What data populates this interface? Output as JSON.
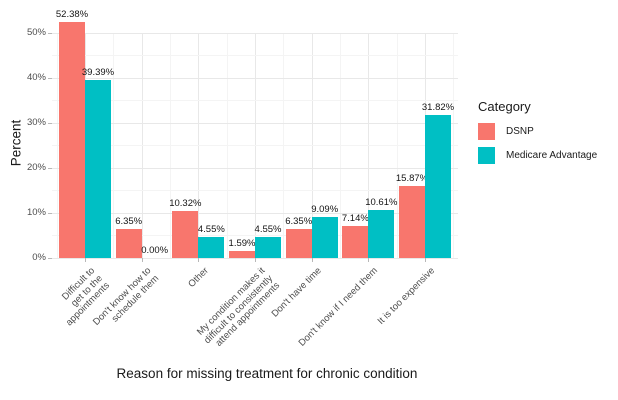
{
  "chart_data": {
    "type": "bar",
    "title": "",
    "xlabel": "Reason for missing treatment for chronic condition",
    "ylabel": "Percent",
    "legend_title": "Category",
    "legend_position": "right",
    "grid": true,
    "ylim": [
      0,
      55
    ],
    "yticks": [
      0,
      10,
      20,
      30,
      40,
      50
    ],
    "ytick_labels": [
      "0%",
      "10%",
      "20%",
      "30%",
      "40%",
      "50%"
    ],
    "categories": [
      "Difficult to get to the\nappointments",
      "Don't know how to\nschedule them",
      "Other",
      "My condition makes it\ndifficult to consistently\nattend appointments",
      "Don't have time",
      "Don't know if I need them",
      "It is too expensive"
    ],
    "series": [
      {
        "name": "DSNP",
        "color": "#F8766D",
        "values": [
          52.38,
          6.35,
          10.32,
          1.59,
          6.35,
          7.14,
          15.87
        ],
        "labels": [
          "52.38%",
          "6.35%",
          "10.32%",
          "1.59%",
          "6.35%",
          "7.14%",
          "15.87%"
        ]
      },
      {
        "name": "Medicare Advantage",
        "color": "#00BFC4",
        "values": [
          39.39,
          0.0,
          4.55,
          4.55,
          9.09,
          10.61,
          31.82
        ],
        "labels": [
          "39.39%",
          "0.00%",
          "4.55%",
          "4.55%",
          "9.09%",
          "10.61%",
          "31.82%"
        ]
      }
    ]
  }
}
